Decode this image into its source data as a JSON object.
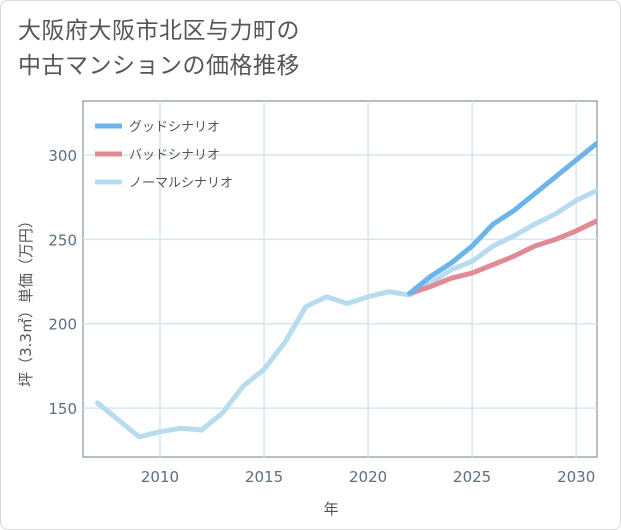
{
  "title": {
    "line1": "大阪府大阪市北区与力町の",
    "line2": "中古マンションの価格推移"
  },
  "chart_data": {
    "type": "line",
    "xlabel": "年",
    "ylabel": "坪（3.3㎡）単価（万円）",
    "xlim": [
      2006.3,
      2031
    ],
    "ylim": [
      121,
      332
    ],
    "xticks": [
      2010,
      2015,
      2020,
      2025,
      2030
    ],
    "yticks": [
      150,
      200,
      250,
      300
    ],
    "legend_position": "top-left",
    "series": [
      {
        "name": "グッドシナリオ",
        "color": "#6cb4ea",
        "x": [
          2022,
          2023,
          2024,
          2025,
          2026,
          2027,
          2028,
          2029,
          2030,
          2031
        ],
        "y": [
          218,
          228,
          236,
          246,
          259,
          267,
          277,
          287,
          297,
          307
        ]
      },
      {
        "name": "バッドシナリオ",
        "color": "#e08a94",
        "x": [
          2022,
          2023,
          2024,
          2025,
          2026,
          2027,
          2028,
          2029,
          2030,
          2031
        ],
        "y": [
          218,
          222,
          227,
          230,
          235,
          240,
          246,
          250,
          255,
          261
        ]
      },
      {
        "name": "ノーマルシナリオ",
        "color": "#b8dcef",
        "x": [
          2007,
          2008,
          2009,
          2010,
          2011,
          2012,
          2013,
          2014,
          2015,
          2016,
          2017,
          2018,
          2019,
          2020,
          2021,
          2022,
          2023,
          2024,
          2025,
          2026,
          2027,
          2028,
          2029,
          2030,
          2031
        ],
        "y": [
          153,
          143,
          133,
          136,
          138,
          137,
          147,
          163,
          173,
          189,
          210,
          216,
          212,
          216,
          219,
          217,
          224,
          232,
          237,
          246,
          252,
          259,
          265,
          273,
          279
        ]
      }
    ]
  }
}
